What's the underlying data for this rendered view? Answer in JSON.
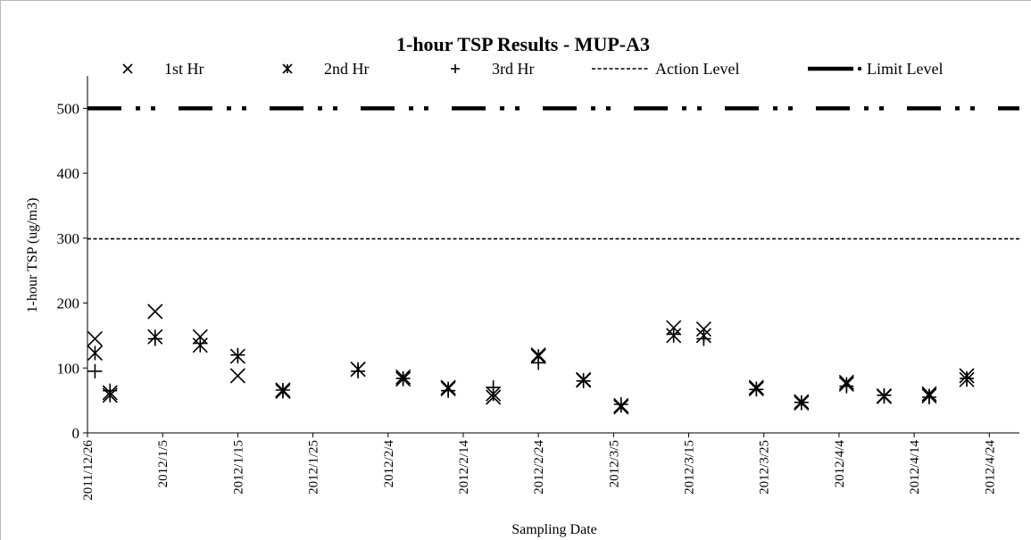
{
  "chart_data": {
    "type": "scatter",
    "title": "1-hour TSP Results - MUP-A3",
    "xlabel": "Sampling Date",
    "ylabel": "1-hour TSP (ug/m3)",
    "ylim": [
      0,
      550
    ],
    "yticks": [
      0,
      100,
      200,
      300,
      400,
      500
    ],
    "xlim": [
      "2011/12/26",
      "2012/4/28"
    ],
    "xticks": [
      "2011/12/26",
      "2012/1/5",
      "2012/1/15",
      "2012/1/25",
      "2012/2/4",
      "2012/2/14",
      "2012/2/24",
      "2012/3/5",
      "2012/3/15",
      "2012/3/25",
      "2012/4/4",
      "2012/4/14",
      "2012/4/24"
    ],
    "grid": false,
    "legend_position": "top",
    "series": [
      {
        "name": "1st Hr",
        "marker": "x",
        "x": [
          "2011/12/27",
          "2011/12/29",
          "2012/1/4",
          "2012/1/10",
          "2012/1/15",
          "2012/1/21",
          "2012/1/31",
          "2012/2/6",
          "2012/2/12",
          "2012/2/18",
          "2012/2/24",
          "2012/3/1",
          "2012/3/6",
          "2012/3/13",
          "2012/3/17",
          "2012/3/24",
          "2012/3/30",
          "2012/4/5",
          "2012/4/10",
          "2012/4/16",
          "2012/4/21"
        ],
        "y": [
          145,
          62,
          187,
          148,
          88,
          66,
          98,
          86,
          70,
          55,
          120,
          82,
          40,
          162,
          160,
          70,
          48,
          78,
          57,
          60,
          88
        ]
      },
      {
        "name": "2nd Hr",
        "marker": "asterisk",
        "x": [
          "2011/12/27",
          "2011/12/29",
          "2012/1/4",
          "2012/1/10",
          "2012/1/15",
          "2012/1/21",
          "2012/1/31",
          "2012/2/6",
          "2012/2/12",
          "2012/2/18",
          "2012/2/24",
          "2012/3/1",
          "2012/3/6",
          "2012/3/13",
          "2012/3/17",
          "2012/3/24",
          "2012/3/30",
          "2012/4/5",
          "2012/4/10",
          "2012/4/16",
          "2012/4/21"
        ],
        "y": [
          123,
          58,
          148,
          135,
          118,
          64,
          98,
          83,
          68,
          60,
          118,
          81,
          42,
          150,
          150,
          68,
          46,
          75,
          56,
          57,
          82
        ]
      },
      {
        "name": "3rd Hr",
        "marker": "plus",
        "x": [
          "2011/12/27",
          "2011/12/29",
          "2012/1/4",
          "2012/1/10",
          "2012/1/15",
          "2012/1/21",
          "2012/1/31",
          "2012/2/6",
          "2012/2/12",
          "2012/2/18",
          "2012/2/24",
          "2012/3/1",
          "2012/3/6",
          "2012/3/13",
          "2012/3/17",
          "2012/3/24",
          "2012/3/30",
          "2012/4/5",
          "2012/4/10",
          "2012/4/16",
          "2012/4/21"
        ],
        "y": [
          95,
          65,
          145,
          138,
          120,
          66,
          95,
          84,
          65,
          70,
          108,
          80,
          44,
          152,
          145,
          67,
          47,
          72,
          58,
          55,
          84
        ]
      },
      {
        "name": "Action Level",
        "style": "dashed",
        "y_constant": 299
      },
      {
        "name": "Limit Level",
        "style": "dash-dot-dot",
        "y_constant": 500
      }
    ]
  }
}
